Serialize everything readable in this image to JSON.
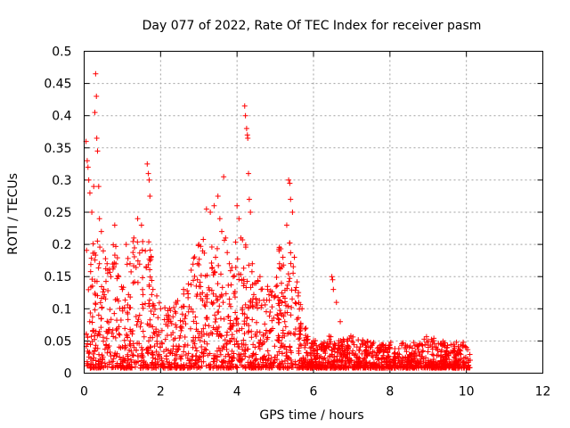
{
  "chart_data": {
    "type": "scatter",
    "title": "Day 077 of 2022, Rate Of TEC Index for receiver pasm",
    "xlabel": "GPS time / hours",
    "ylabel": "ROTI / TECUs",
    "xlim": [
      0,
      12
    ],
    "ylim": [
      0,
      0.5
    ],
    "xticks": [
      0,
      2,
      4,
      6,
      8,
      10,
      12
    ],
    "yticks": [
      0,
      0.05,
      0.1,
      0.15,
      0.2,
      0.25,
      0.3,
      0.35,
      0.4,
      0.45,
      0.5
    ],
    "xtick_labels": [
      "0",
      "2",
      "4",
      "6",
      "8",
      "10",
      "12"
    ],
    "ytick_labels": [
      "0",
      "0.05",
      "0.1",
      "0.15",
      "0.2",
      "0.25",
      "0.3",
      "0.35",
      "0.4",
      "0.45",
      "0.5"
    ],
    "grid": true,
    "marker": "+",
    "color": "#ff0000",
    "series": [
      {
        "name": "ROTI",
        "points": [
          [
            0.05,
            0.36
          ],
          [
            0.08,
            0.33
          ],
          [
            0.1,
            0.32
          ],
          [
            0.12,
            0.3
          ],
          [
            0.15,
            0.28
          ],
          [
            0.2,
            0.25
          ],
          [
            0.25,
            0.29
          ],
          [
            0.28,
            0.405
          ],
          [
            0.3,
            0.465
          ],
          [
            0.32,
            0.43
          ],
          [
            0.33,
            0.365
          ],
          [
            0.35,
            0.345
          ],
          [
            0.38,
            0.29
          ],
          [
            0.4,
            0.24
          ],
          [
            0.45,
            0.22
          ],
          [
            0.5,
            0.19
          ],
          [
            0.6,
            0.17
          ],
          [
            0.7,
            0.15
          ],
          [
            0.8,
            0.23
          ],
          [
            0.9,
            0.15
          ],
          [
            1.0,
            0.13
          ],
          [
            1.1,
            0.2
          ],
          [
            1.2,
            0.17
          ],
          [
            1.3,
            0.21
          ],
          [
            1.4,
            0.24
          ],
          [
            1.5,
            0.23
          ],
          [
            1.6,
            0.19
          ],
          [
            1.65,
            0.325
          ],
          [
            1.68,
            0.31
          ],
          [
            1.7,
            0.3
          ],
          [
            1.72,
            0.275
          ],
          [
            1.75,
            0.18
          ],
          [
            1.8,
            0.13
          ],
          [
            1.9,
            0.12
          ],
          [
            2.0,
            0.1
          ],
          [
            2.2,
            0.09
          ],
          [
            2.4,
            0.11
          ],
          [
            2.6,
            0.13
          ],
          [
            2.8,
            0.16
          ],
          [
            3.0,
            0.2
          ],
          [
            3.1,
            0.19
          ],
          [
            3.2,
            0.255
          ],
          [
            3.3,
            0.25
          ],
          [
            3.4,
            0.26
          ],
          [
            3.5,
            0.275
          ],
          [
            3.55,
            0.24
          ],
          [
            3.6,
            0.22
          ],
          [
            3.65,
            0.305
          ],
          [
            3.7,
            0.21
          ],
          [
            3.8,
            0.17
          ],
          [
            3.9,
            0.15
          ],
          [
            4.0,
            0.26
          ],
          [
            4.05,
            0.24
          ],
          [
            4.1,
            0.21
          ],
          [
            4.2,
            0.415
          ],
          [
            4.22,
            0.4
          ],
          [
            4.25,
            0.38
          ],
          [
            4.27,
            0.37
          ],
          [
            4.28,
            0.365
          ],
          [
            4.3,
            0.31
          ],
          [
            4.32,
            0.27
          ],
          [
            4.35,
            0.25
          ],
          [
            4.4,
            0.17
          ],
          [
            4.5,
            0.14
          ],
          [
            4.6,
            0.15
          ],
          [
            4.8,
            0.13
          ],
          [
            5.0,
            0.12
          ],
          [
            5.1,
            0.19
          ],
          [
            5.2,
            0.18
          ],
          [
            5.3,
            0.23
          ],
          [
            5.35,
            0.3
          ],
          [
            5.38,
            0.295
          ],
          [
            5.4,
            0.27
          ],
          [
            5.45,
            0.25
          ],
          [
            5.5,
            0.18
          ],
          [
            5.6,
            0.12
          ],
          [
            5.7,
            0.1
          ],
          [
            5.8,
            0.07
          ],
          [
            6.0,
            0.05
          ],
          [
            6.2,
            0.04
          ],
          [
            6.4,
            0.04
          ],
          [
            6.48,
            0.15
          ],
          [
            6.5,
            0.145
          ],
          [
            6.52,
            0.13
          ],
          [
            6.6,
            0.11
          ],
          [
            6.7,
            0.08
          ],
          [
            6.8,
            0.05
          ],
          [
            7.0,
            0.05
          ],
          [
            7.5,
            0.04
          ],
          [
            8.0,
            0.04
          ],
          [
            8.5,
            0.04
          ],
          [
            9.0,
            0.05
          ],
          [
            9.5,
            0.04
          ],
          [
            10.0,
            0.04
          ],
          [
            10.1,
            0.02
          ]
        ]
      }
    ]
  }
}
